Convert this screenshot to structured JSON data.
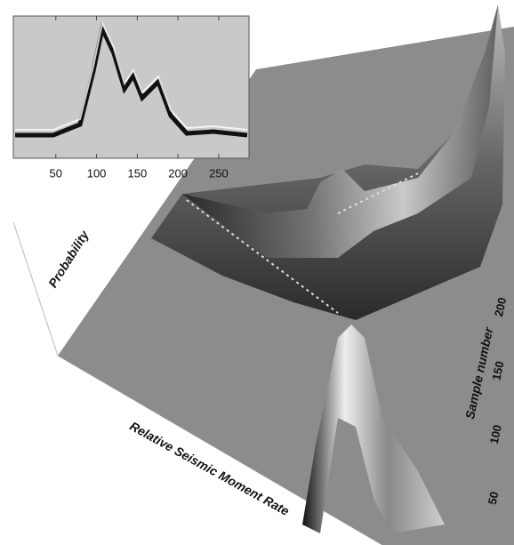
{
  "chart_data": [
    {
      "type": "surface",
      "xlabel": "Relative Seismic Moment Rate",
      "ylabel": "Sample number",
      "zlabel": "Probability",
      "ylim": [
        0,
        280
      ],
      "yticks": [
        50,
        100,
        150,
        200
      ]
    },
    {
      "type": "density",
      "xlim": [
        0,
        285
      ],
      "xticks": [
        50,
        100,
        150,
        200,
        250
      ]
    }
  ]
}
